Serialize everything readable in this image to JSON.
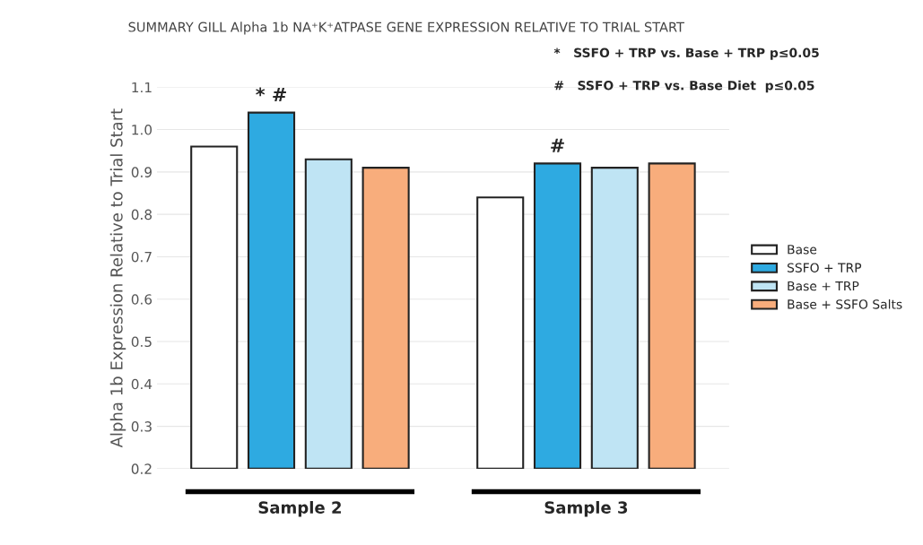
{
  "chart_data": {
    "type": "bar",
    "title": "SUMMARY GILL Alpha 1b NA⁺K⁺ATPASE GENE EXPRESSION RELATIVE TO TRIAL START",
    "ylabel": "Alpha 1b Expression Relative to Trial Start",
    "categories": [
      "Sample 2",
      "Sample 3"
    ],
    "series": [
      {
        "name": "Base",
        "color": "#ffffff",
        "values": [
          0.96,
          0.84
        ]
      },
      {
        "name": "SSFO + TRP",
        "color": "#2eaae1",
        "values": [
          1.04,
          0.92
        ]
      },
      {
        "name": "Base + TRP",
        "color": "#bfe4f4",
        "values": [
          0.93,
          0.91
        ]
      },
      {
        "name": "Base + SSFO Salts",
        "color": "#f8ad7c",
        "values": [
          0.91,
          0.92
        ]
      }
    ],
    "ylim": [
      0.2,
      1.1
    ],
    "yticks": [
      {
        "value": 0.2,
        "label": "0.2"
      },
      {
        "value": 0.3,
        "label": "0.3"
      },
      {
        "value": 0.4,
        "label": "0.4"
      },
      {
        "value": 0.5,
        "label": "0.5"
      },
      {
        "value": 0.6,
        "label": "0.6"
      },
      {
        "value": 0.7,
        "label": "0.7"
      },
      {
        "value": 0.8,
        "label": "0.8"
      },
      {
        "value": 0.9,
        "label": "0.9"
      },
      {
        "value": 1.0,
        "label": "1.0"
      },
      {
        "value": 1.1,
        "label": "1.1"
      }
    ],
    "grid": "y",
    "legend": "right",
    "annotations": [
      "* #",
      "#",
      "*   SSFO + TRP vs. Base + TRP p≤0.05",
      "#   SSFO + TRP vs. Base Diet  p≤0.05"
    ]
  }
}
